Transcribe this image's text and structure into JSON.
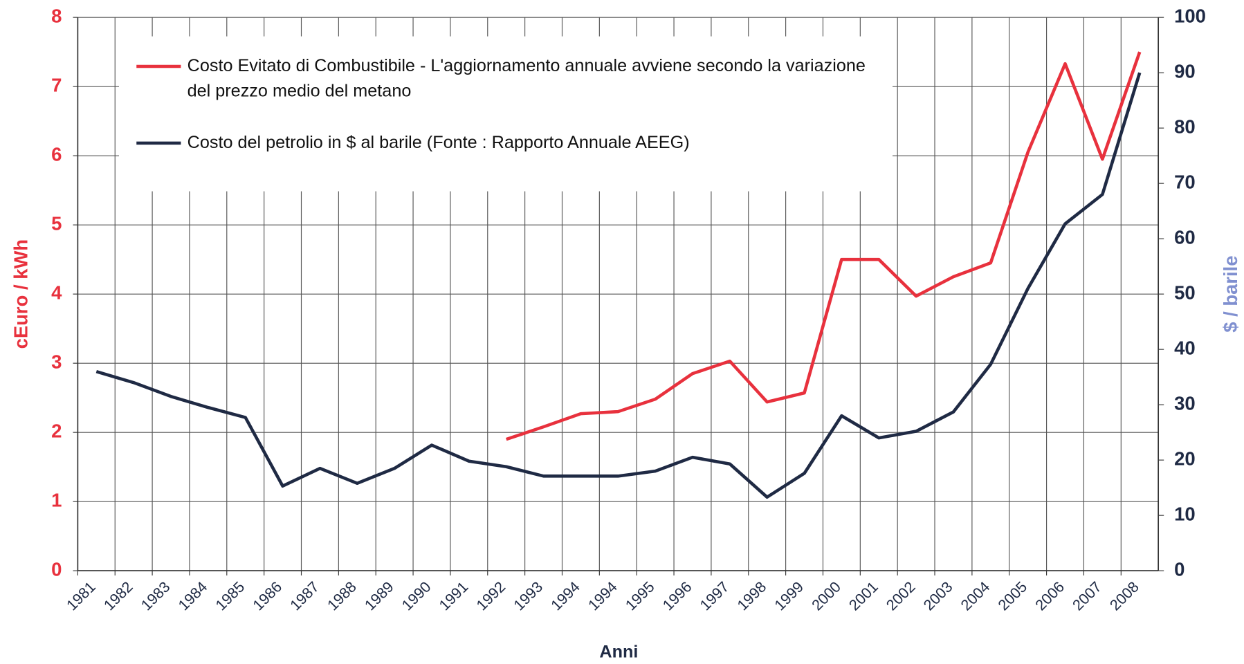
{
  "chart_data": {
    "type": "line",
    "xlabel": "Anni",
    "ylabel": "cEuro / kWh",
    "y2label": "$ / barile",
    "categories": [
      "1981",
      "1982",
      "1983",
      "1984",
      "1985",
      "1986",
      "1987",
      "1988",
      "1989",
      "1990",
      "1991",
      "1992",
      "1993",
      "1994",
      "1994",
      "1995",
      "1996",
      "1997",
      "1998",
      "1999",
      "2000",
      "2001",
      "2002",
      "2003",
      "2004",
      "2005",
      "2006",
      "2007",
      "2008"
    ],
    "series": [
      {
        "name": "Costo Evitato di Combustibile - L'aggiornamento annuale avviene secondo la variazione del prezzo medio del metano",
        "color": "#e8313d",
        "axis": "y",
        "values": [
          null,
          null,
          null,
          null,
          null,
          null,
          null,
          null,
          null,
          null,
          null,
          1.9,
          2.08,
          2.27,
          2.3,
          2.48,
          2.85,
          3.03,
          2.44,
          2.57,
          4.5,
          4.5,
          3.97,
          4.25,
          4.45,
          6.05,
          7.33,
          5.95,
          7.5
        ]
      },
      {
        "name": "Costo del petrolio in $ al barile (Fonte : Rapporto Annuale AEEG)",
        "color": "#1f2a44",
        "axis": "y2",
        "values": [
          36,
          34,
          31.5,
          29.5,
          27.7,
          15.3,
          18.5,
          15.8,
          18.5,
          22.7,
          19.8,
          18.8,
          17.1,
          17.1,
          17.1,
          18,
          20.5,
          19.3,
          13.3,
          17.6,
          28,
          24,
          25.2,
          28.7,
          37.3,
          51,
          62.7,
          68,
          90
        ]
      }
    ],
    "ylim": [
      0,
      8
    ],
    "yticks": [
      0,
      1,
      2,
      3,
      4,
      5,
      6,
      7,
      8
    ],
    "y2lim": [
      0,
      100
    ],
    "y2ticks": [
      0,
      10,
      20,
      30,
      40,
      50,
      60,
      70,
      80,
      90,
      100
    ],
    "grid": true
  }
}
